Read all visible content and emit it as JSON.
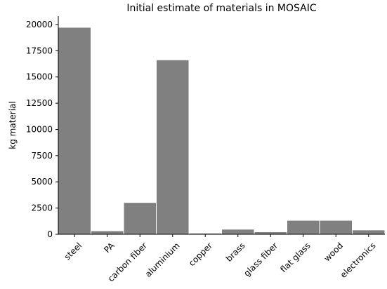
{
  "chart_data": {
    "type": "bar",
    "title": "Initial estimate of materials in MOSAIC",
    "xlabel": "",
    "ylabel": "kg material",
    "categories": [
      "steel",
      "PA",
      "carbon fiber",
      "aluminium",
      "copper",
      "brass",
      "glass fiber",
      "flat glass",
      "wood",
      "electronics"
    ],
    "values": [
      19700,
      300,
      3000,
      16600,
      80,
      450,
      200,
      1300,
      1300,
      380
    ],
    "ylim": [
      0,
      20800
    ],
    "yticks": [
      0,
      2500,
      5000,
      7500,
      10000,
      12500,
      15000,
      17500,
      20000
    ],
    "ytick_labels": [
      "0",
      "2500",
      "5000",
      "7500",
      "10000",
      "12500",
      "15000",
      "17500",
      "20000"
    ],
    "bar_color": "#808080",
    "grid": false,
    "legend": "none"
  }
}
